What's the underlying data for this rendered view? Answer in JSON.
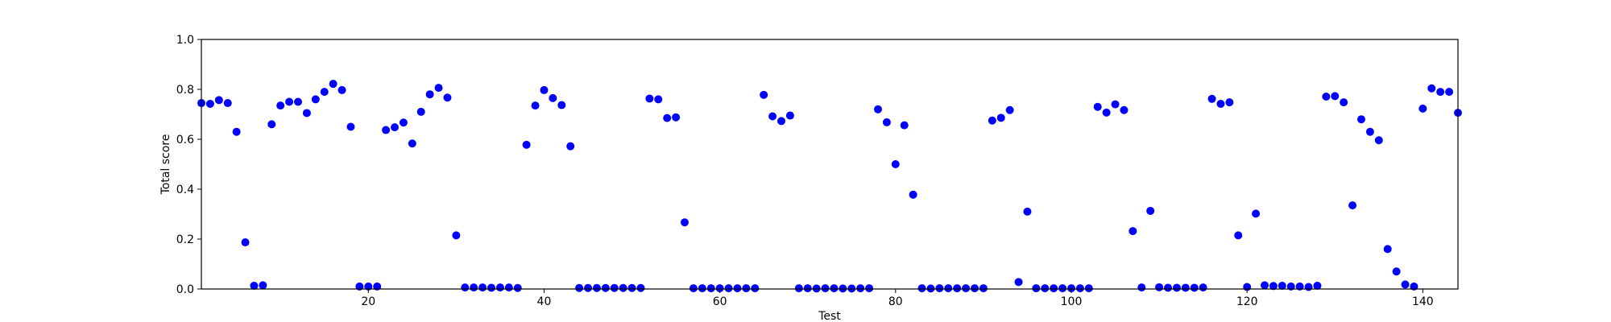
{
  "chart_data": {
    "type": "scatter",
    "title": "",
    "xlabel": "Test",
    "ylabel": "Total score",
    "xlim": [
      1,
      144
    ],
    "ylim": [
      0.0,
      1.0
    ],
    "xticks": [
      20,
      40,
      60,
      80,
      100,
      120,
      140
    ],
    "yticks": [
      "0.0",
      "0.2",
      "0.4",
      "0.6",
      "0.8",
      "1.0"
    ],
    "grid": false,
    "legend": "none",
    "marker_color": "#0000ff",
    "series": [
      {
        "x": [
          1,
          2,
          3,
          4,
          5,
          6,
          7,
          8,
          9,
          10,
          11,
          12,
          13,
          14,
          15,
          16,
          17,
          18,
          19,
          20,
          21,
          22,
          23,
          24,
          25,
          26,
          27,
          28,
          29,
          30,
          31,
          32,
          33,
          34,
          35,
          36,
          37,
          38,
          39,
          40,
          41,
          42,
          43,
          44,
          45,
          46,
          47,
          48,
          49,
          50,
          51,
          52,
          53,
          54,
          55,
          56,
          57,
          58,
          59,
          60,
          61,
          62,
          63,
          64,
          65,
          66,
          67,
          68,
          69,
          70,
          71,
          72,
          73,
          74,
          75,
          76,
          77,
          78,
          79,
          80,
          81,
          82,
          83,
          84,
          85,
          86,
          87,
          88,
          89,
          90,
          91,
          92,
          93,
          94,
          95,
          96,
          97,
          98,
          99,
          100,
          101,
          102,
          103,
          104,
          105,
          106,
          107,
          108,
          109,
          110,
          111,
          112,
          113,
          114,
          115,
          116,
          117,
          118,
          119,
          120,
          121,
          122,
          123,
          124,
          125,
          126,
          127,
          128,
          129,
          130,
          131,
          132,
          133,
          134,
          135,
          136,
          137,
          138,
          139,
          140,
          141,
          142,
          143,
          144
        ],
        "y": [
          0.745,
          0.742,
          0.757,
          0.745,
          0.63,
          0.187,
          0.013,
          0.015,
          0.66,
          0.735,
          0.75,
          0.75,
          0.705,
          0.76,
          0.79,
          0.822,
          0.797,
          0.65,
          0.01,
          0.01,
          0.01,
          0.637,
          0.648,
          0.667,
          0.583,
          0.71,
          0.78,
          0.806,
          0.767,
          0.215,
          0.006,
          0.006,
          0.006,
          0.005,
          0.006,
          0.006,
          0.004,
          0.578,
          0.735,
          0.797,
          0.765,
          0.737,
          0.572,
          0.004,
          0.004,
          0.004,
          0.004,
          0.004,
          0.004,
          0.004,
          0.004,
          0.763,
          0.76,
          0.685,
          0.688,
          0.267,
          0.003,
          0.003,
          0.003,
          0.003,
          0.003,
          0.003,
          0.003,
          0.003,
          0.778,
          0.692,
          0.673,
          0.695,
          0.003,
          0.003,
          0.002,
          0.003,
          0.003,
          0.002,
          0.002,
          0.003,
          0.003,
          0.72,
          0.668,
          0.5,
          0.656,
          0.378,
          0.003,
          0.002,
          0.003,
          0.003,
          0.003,
          0.003,
          0.003,
          0.003,
          0.675,
          0.686,
          0.717,
          0.028,
          0.31,
          0.003,
          0.003,
          0.003,
          0.003,
          0.003,
          0.003,
          0.003,
          0.73,
          0.707,
          0.74,
          0.717,
          0.232,
          0.006,
          0.313,
          0.007,
          0.005,
          0.005,
          0.005,
          0.005,
          0.006,
          0.762,
          0.742,
          0.748,
          0.215,
          0.008,
          0.302,
          0.015,
          0.012,
          0.013,
          0.01,
          0.01,
          0.008,
          0.013,
          0.771,
          0.773,
          0.748,
          0.335,
          0.68,
          0.63,
          0.596,
          0.16,
          0.07,
          0.018,
          0.01,
          0.723,
          0.804,
          0.79,
          0.79,
          0.706
        ]
      }
    ]
  }
}
